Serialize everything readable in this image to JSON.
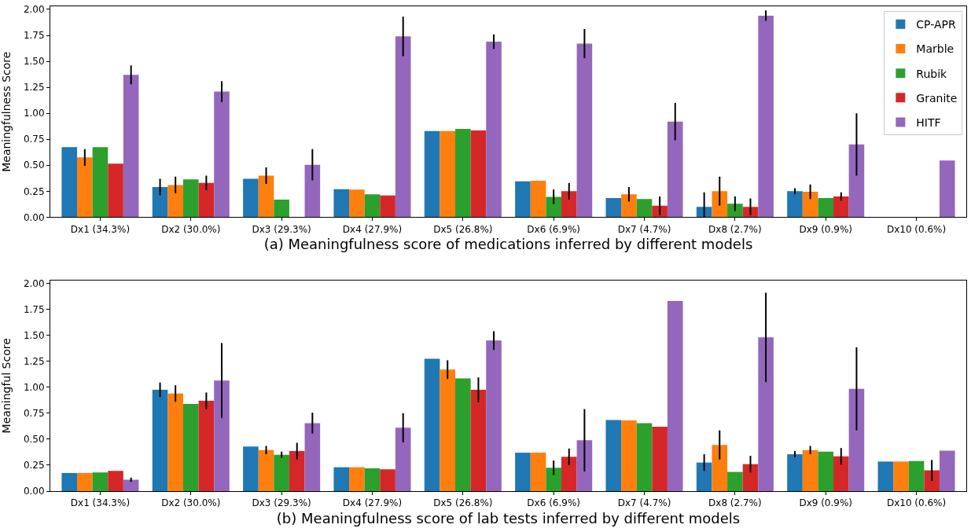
{
  "chart_data": [
    {
      "type": "bar",
      "xlabel": "(a) Meaningfulness score of medications inferred by different models",
      "ylabel": "Meaningfulness Score",
      "categories": [
        "Dx1 (34.3%)",
        "Dx2 (30.0%)",
        "Dx3 (29.3%)",
        "Dx4 (27.9%)",
        "Dx5 (26.8%)",
        "Dx6 (6.9%)",
        "Dx7 (4.7%)",
        "Dx8 (2.7%)",
        "Dx9 (0.9%)",
        "Dx10 (0.6%)"
      ],
      "ylim": [
        0,
        2.03
      ],
      "yticks": [
        {
          "value": 0,
          "label": "0.00"
        },
        0.25,
        {
          "value": 0.5,
          "label": "0.50"
        },
        0.75,
        {
          "value": 1,
          "label": "1.00"
        },
        1.25,
        {
          "value": 1.5,
          "label": "1.50"
        },
        1.75,
        {
          "value": 2,
          "label": "2.00"
        }
      ],
      "legend": "top right",
      "series": [
        {
          "name": "CP-APR",
          "color": "#1f77b4",
          "values": [
            0.675,
            0.29,
            0.37,
            0.27,
            0.83,
            0.345,
            0.185,
            0.1,
            0.25,
            null
          ],
          "errors": [
            null,
            0.08,
            null,
            null,
            null,
            null,
            null,
            0.14,
            0.03,
            null
          ]
        },
        {
          "name": "Marble",
          "color": "#ff7f0e",
          "values": [
            0.575,
            0.31,
            0.4,
            0.265,
            0.83,
            0.35,
            0.22,
            0.25,
            0.245,
            null
          ],
          "errors": [
            0.08,
            0.08,
            0.08,
            null,
            null,
            null,
            0.07,
            0.14,
            0.07,
            null
          ]
        },
        {
          "name": "Rubik",
          "color": "#2ca02c",
          "values": [
            0.675,
            0.365,
            0.17,
            0.22,
            0.85,
            0.195,
            0.175,
            0.13,
            0.185,
            null
          ],
          "errors": [
            null,
            null,
            null,
            null,
            null,
            0.07,
            null,
            0.07,
            null,
            null
          ]
        },
        {
          "name": "Granite",
          "color": "#d62728",
          "values": [
            0.515,
            0.33,
            null,
            0.21,
            0.835,
            0.25,
            0.11,
            0.1,
            0.2,
            null
          ],
          "errors": [
            null,
            0.07,
            null,
            null,
            null,
            0.08,
            0.09,
            0.08,
            0.04,
            null
          ]
        },
        {
          "name": "HITF",
          "color": "#9467bd",
          "values": [
            1.37,
            1.21,
            0.505,
            1.74,
            1.69,
            1.67,
            0.92,
            1.94,
            0.7,
            0.545
          ],
          "errors": [
            0.09,
            0.1,
            0.15,
            0.19,
            0.07,
            0.14,
            0.18,
            0.05,
            0.3,
            null
          ]
        }
      ]
    },
    {
      "type": "bar",
      "xlabel": "(b) Meaningfulness score of lab tests inferred by different models",
      "ylabel": "Meaningful Score",
      "categories": [
        "Dx1 (34.3%)",
        "Dx2 (30.0%)",
        "Dx3 (29.3%)",
        "Dx4 (27.9%)",
        "Dx5 (26.8%)",
        "Dx6 (6.9%)",
        "Dx7 (4.7%)",
        "Dx8 (2.7%)",
        "Dx9 (0.9%)",
        "Dx10 (0.6%)"
      ],
      "ylim": [
        0,
        2.03
      ],
      "yticks": [
        {
          "value": 0,
          "label": "0.00"
        },
        0.25,
        {
          "value": 0.5,
          "label": "0.50"
        },
        0.75,
        {
          "value": 1,
          "label": "1.00"
        },
        1.25,
        {
          "value": 1.5,
          "label": "1.50"
        },
        1.75,
        {
          "value": 2,
          "label": "2.00"
        }
      ],
      "series": [
        {
          "color": "#1f77b4",
          "values": [
            0.175,
            0.975,
            0.43,
            0.23,
            1.275,
            0.37,
            0.685,
            0.275,
            0.355,
            0.285
          ],
          "errors": [
            null,
            0.07,
            null,
            null,
            null,
            null,
            null,
            0.08,
            0.03,
            null
          ]
        },
        {
          "color": "#ff7f0e",
          "values": [
            0.175,
            0.94,
            0.395,
            0.23,
            1.17,
            0.37,
            0.68,
            0.445,
            0.395,
            0.285
          ],
          "errors": [
            null,
            0.08,
            0.04,
            null,
            0.09,
            null,
            null,
            0.14,
            0.04,
            null
          ]
        },
        {
          "color": "#2ca02c",
          "values": [
            0.18,
            0.84,
            0.35,
            0.22,
            1.085,
            0.225,
            0.655,
            0.185,
            0.38,
            0.29
          ],
          "errors": [
            null,
            null,
            0.03,
            null,
            null,
            0.07,
            null,
            null,
            null,
            null
          ]
        },
        {
          "color": "#d62728",
          "values": [
            0.195,
            0.87,
            0.385,
            0.21,
            0.975,
            0.33,
            0.62,
            0.26,
            0.335,
            0.2
          ],
          "errors": [
            null,
            0.08,
            0.08,
            null,
            0.12,
            0.08,
            null,
            0.08,
            0.08,
            0.1
          ]
        },
        {
          "color": "#9467bd",
          "values": [
            0.11,
            1.065,
            0.655,
            0.61,
            1.45,
            0.49,
            1.83,
            1.48,
            0.985,
            0.39
          ],
          "errors": [
            0.02,
            0.36,
            0.1,
            0.14,
            0.09,
            0.3,
            null,
            0.43,
            0.4,
            null
          ]
        }
      ]
    }
  ]
}
